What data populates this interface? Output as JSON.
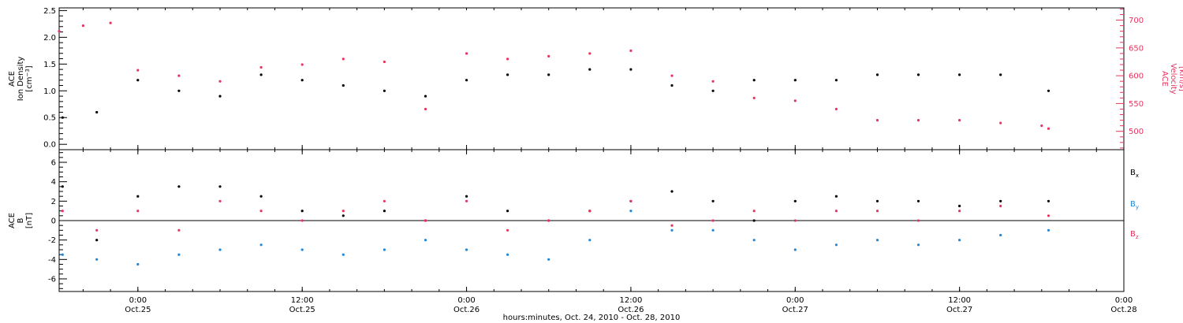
{
  "colors": {
    "black": "#000000",
    "pink": "#e8335f",
    "blue": "#1f86d8"
  },
  "xaxis": {
    "title": "hours:minutes, Oct. 24, 2010 - Oct. 28, 2010",
    "tick_times": [
      "0:00",
      "12:00",
      "0:00",
      "12:00",
      "0:00",
      "12:00",
      "0:00"
    ],
    "tick_dates": [
      "Oct.25",
      "Oct.25",
      "Oct.26",
      "Oct.26",
      "Oct.27",
      "Oct.27",
      "Oct.28"
    ]
  },
  "chart_data": [
    {
      "type": "scatter",
      "panel": "top",
      "xlabel": "hours:minutes, Oct. 24, 2010 - Oct. 28, 2010",
      "x_range": [
        "2010-10-24T18:15",
        "2010-10-28T00:00"
      ],
      "left_axis": {
        "label": [
          "ACE",
          "Ion Density",
          "[cm⁻³]"
        ],
        "ticks": [
          "0.0",
          "0.5",
          "1.0",
          "1.5",
          "2.0",
          "2.5"
        ],
        "range": [
          -0.1,
          2.55
        ]
      },
      "right_axis": {
        "label": [
          "ACE",
          "Velocity",
          "[km/s]"
        ],
        "ticks": [
          "500",
          "550",
          "600",
          "650",
          "700"
        ],
        "range": [
          467,
          722
        ]
      },
      "series": [
        {
          "axis": "left",
          "color": "#000000",
          "x": [
            "2010-10-24T18:30",
            "2010-10-24T21:00",
            "2010-10-25T00:00",
            "2010-10-25T03:00",
            "2010-10-25T06:00",
            "2010-10-25T09:00",
            "2010-10-25T12:00",
            "2010-10-25T15:00",
            "2010-10-25T18:00",
            "2010-10-25T21:00",
            "2010-10-26T00:00",
            "2010-10-26T03:00",
            "2010-10-26T06:00",
            "2010-10-26T09:00",
            "2010-10-26T12:00",
            "2010-10-26T15:00",
            "2010-10-26T18:00",
            "2010-10-26T21:00",
            "2010-10-27T00:00",
            "2010-10-27T03:00",
            "2010-10-27T06:00",
            "2010-10-27T09:00",
            "2010-10-27T12:00",
            "2010-10-27T15:00",
            "2010-10-27T18:30"
          ],
          "y": [
            0.5,
            0.6,
            1.2,
            1.0,
            0.9,
            1.3,
            1.2,
            1.1,
            1.0,
            0.9,
            1.2,
            1.3,
            1.3,
            1.4,
            1.4,
            1.1,
            1.0,
            1.2,
            1.2,
            1.2,
            1.3,
            1.3,
            1.3,
            1.3,
            1.0
          ]
        },
        {
          "axis": "right",
          "color": "#e8335f",
          "x": [
            "2010-10-24T18:15",
            "2010-10-24T20:00",
            "2010-10-24T22:00",
            "2010-10-25T00:00",
            "2010-10-25T03:00",
            "2010-10-25T06:00",
            "2010-10-25T09:00",
            "2010-10-25T12:00",
            "2010-10-25T15:00",
            "2010-10-25T18:00",
            "2010-10-25T21:00",
            "2010-10-26T00:00",
            "2010-10-26T03:00",
            "2010-10-26T06:00",
            "2010-10-26T09:00",
            "2010-10-26T12:00",
            "2010-10-26T15:00",
            "2010-10-26T18:00",
            "2010-10-26T21:00",
            "2010-10-27T00:00",
            "2010-10-27T03:00",
            "2010-10-27T06:00",
            "2010-10-27T09:00",
            "2010-10-27T12:00",
            "2010-10-27T15:00",
            "2010-10-27T18:00",
            "2010-10-27T18:30"
          ],
          "y": [
            680,
            690,
            695,
            610,
            600,
            590,
            615,
            620,
            630,
            625,
            540,
            640,
            630,
            635,
            640,
            645,
            600,
            590,
            560,
            555,
            540,
            520,
            520,
            520,
            515,
            510,
            505
          ]
        }
      ]
    },
    {
      "type": "scatter",
      "panel": "bottom",
      "xlabel": "hours:minutes, Oct. 24, 2010 - Oct. 28, 2010",
      "left_axis": {
        "label": [
          "ACE",
          "B",
          "[nT]"
        ],
        "ticks": [
          "-6",
          "-4",
          "-2",
          "0",
          "2",
          "4",
          "6"
        ],
        "range": [
          -7.3,
          7.3
        ]
      },
      "legend_position": "right",
      "series": [
        {
          "name": "Bx",
          "legend_base": "B",
          "legend_sub": "x",
          "color": "#000000",
          "x": [
            "2010-10-24T18:30",
            "2010-10-24T21:00",
            "2010-10-25T00:00",
            "2010-10-25T03:00",
            "2010-10-25T06:00",
            "2010-10-25T09:00",
            "2010-10-25T12:00",
            "2010-10-25T15:00",
            "2010-10-25T18:00",
            "2010-10-25T21:00",
            "2010-10-26T00:00",
            "2010-10-26T03:00",
            "2010-10-26T06:00",
            "2010-10-26T09:00",
            "2010-10-26T12:00",
            "2010-10-26T15:00",
            "2010-10-26T18:00",
            "2010-10-26T21:00",
            "2010-10-27T00:00",
            "2010-10-27T03:00",
            "2010-10-27T06:00",
            "2010-10-27T09:00",
            "2010-10-27T12:00",
            "2010-10-27T15:00",
            "2010-10-27T18:30"
          ],
          "y": [
            3.5,
            -2,
            2.5,
            3.5,
            3.5,
            2.5,
            1,
            0.5,
            1,
            0,
            2.5,
            1,
            0,
            1,
            2,
            3,
            2,
            0,
            2,
            2.5,
            2,
            2,
            1.5,
            2,
            2
          ]
        },
        {
          "name": "By",
          "legend_base": "B",
          "legend_sub": "y",
          "color": "#1f86d8",
          "x": [
            "2010-10-24T18:30",
            "2010-10-24T21:00",
            "2010-10-25T00:00",
            "2010-10-25T03:00",
            "2010-10-25T06:00",
            "2010-10-25T09:00",
            "2010-10-25T12:00",
            "2010-10-25T15:00",
            "2010-10-25T18:00",
            "2010-10-25T21:00",
            "2010-10-26T00:00",
            "2010-10-26T03:00",
            "2010-10-26T06:00",
            "2010-10-26T09:00",
            "2010-10-26T12:00",
            "2010-10-26T15:00",
            "2010-10-26T18:00",
            "2010-10-26T21:00",
            "2010-10-27T00:00",
            "2010-10-27T03:00",
            "2010-10-27T06:00",
            "2010-10-27T09:00",
            "2010-10-27T12:00",
            "2010-10-27T15:00",
            "2010-10-27T18:30"
          ],
          "y": [
            -3.5,
            -4,
            -4.5,
            -3.5,
            -3,
            -2.5,
            -3,
            -3.5,
            -3,
            -2,
            -3,
            -3.5,
            -4,
            -2,
            1,
            -1,
            -1,
            -2,
            -3,
            -2.5,
            -2,
            -2.5,
            -2,
            -1.5,
            -1
          ]
        },
        {
          "name": "Bz",
          "legend_base": "B",
          "legend_sub": "z",
          "color": "#e8335f",
          "x": [
            "2010-10-24T18:30",
            "2010-10-24T21:00",
            "2010-10-25T00:00",
            "2010-10-25T03:00",
            "2010-10-25T06:00",
            "2010-10-25T09:00",
            "2010-10-25T12:00",
            "2010-10-25T15:00",
            "2010-10-25T18:00",
            "2010-10-25T21:00",
            "2010-10-26T00:00",
            "2010-10-26T03:00",
            "2010-10-26T06:00",
            "2010-10-26T09:00",
            "2010-10-26T12:00",
            "2010-10-26T15:00",
            "2010-10-26T18:00",
            "2010-10-26T21:00",
            "2010-10-27T00:00",
            "2010-10-27T03:00",
            "2010-10-27T06:00",
            "2010-10-27T09:00",
            "2010-10-27T12:00",
            "2010-10-27T15:00",
            "2010-10-27T18:30"
          ],
          "y": [
            1,
            -1,
            1,
            -1,
            2,
            1,
            0,
            1,
            2,
            0,
            2,
            -1,
            0,
            1,
            2,
            -0.5,
            0,
            1,
            0,
            1,
            1,
            0,
            1,
            1.5,
            0.5
          ]
        }
      ]
    }
  ]
}
